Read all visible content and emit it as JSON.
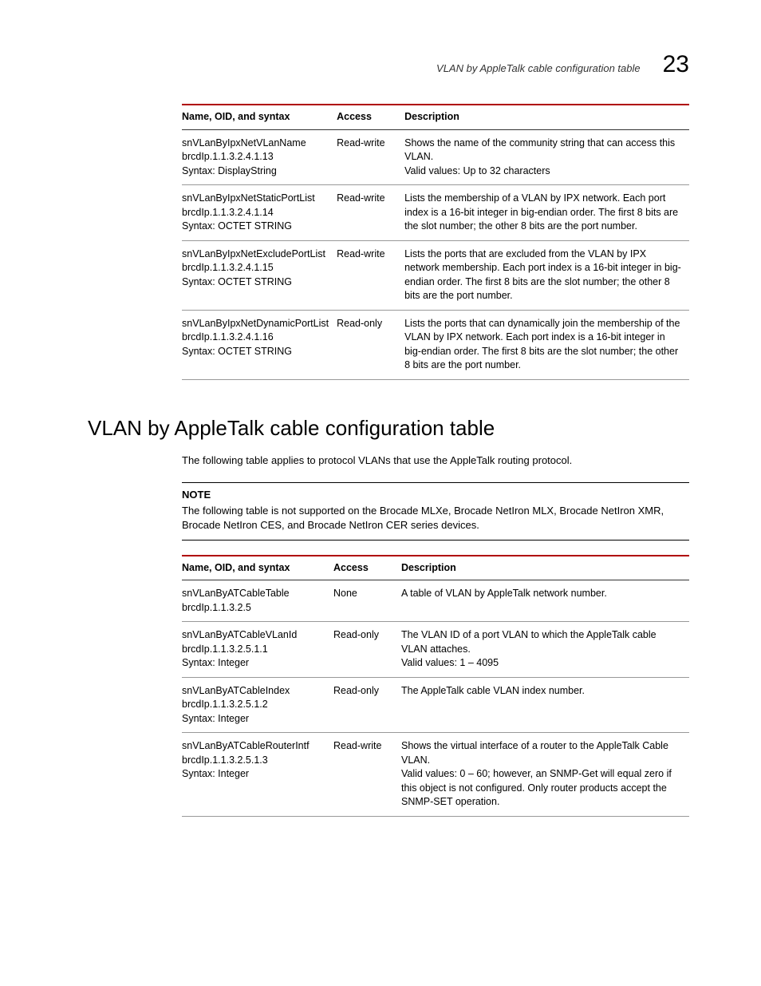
{
  "header": {
    "title": "VLAN by AppleTalk cable configuration table",
    "chapter_number": "23"
  },
  "table1": {
    "columns": [
      "Name, OID, and syntax",
      "Access",
      "Description"
    ],
    "rows": [
      {
        "name1": "snVLanByIpxNetVLanName",
        "name2": "brcdIp.1.1.3.2.4.1.13",
        "name3": "Syntax: DisplayString",
        "access": "Read-write",
        "desc": "Shows the name of the community string that can access this VLAN.\nValid values: Up to 32 characters"
      },
      {
        "name1": "snVLanByIpxNetStaticPortList",
        "name2": "brcdIp.1.1.3.2.4.1.14",
        "name3": "Syntax: OCTET STRING",
        "access": "Read-write",
        "desc": "Lists the membership of a VLAN by IPX network. Each port index is a 16-bit integer in big-endian order. The first 8 bits are the slot number; the other 8 bits are the port number."
      },
      {
        "name1": "snVLanByIpxNetExcludePortList",
        "name2": "brcdIp.1.1.3.2.4.1.15",
        "name3": "Syntax: OCTET STRING",
        "access": "Read-write",
        "desc": "Lists the ports that are excluded from the VLAN by IPX network membership. Each port index is a 16-bit integer in big-endian order. The first 8 bits are the slot number; the other 8 bits are the port number."
      },
      {
        "name1": "snVLanByIpxNetDynamicPortList",
        "name2": "brcdIp.1.1.3.2.4.1.16",
        "name3": "Syntax: OCTET STRING",
        "access": "Read-only",
        "desc": "Lists the ports that can dynamically join the membership of the VLAN by IPX network. Each port index is a 16-bit integer in big-endian order. The first 8 bits are the slot number; the other 8 bits are the port number."
      }
    ]
  },
  "section_heading": "VLAN by AppleTalk cable configuration table",
  "intro": "The following table applies to protocol VLANs that use the AppleTalk routing protocol.",
  "note": {
    "heading": "NOTE",
    "body": "The following table is not supported on the Brocade MLXe, Brocade NetIron MLX, Brocade NetIron XMR, Brocade NetIron CES, and Brocade NetIron CER series devices."
  },
  "table2": {
    "columns": [
      "Name, OID, and syntax",
      "Access",
      "Description"
    ],
    "rows": [
      {
        "name1": "snVLanByATCableTable",
        "name2": "brcdIp.1.1.3.2.5",
        "name3": "",
        "access": "None",
        "desc": "A table of VLAN by AppleTalk network number."
      },
      {
        "name1": "snVLanByATCableVLanId",
        "name2": "brcdIp.1.1.3.2.5.1.1",
        "name3": "Syntax: Integer",
        "access": "Read-only",
        "desc": "The VLAN ID of a port VLAN to which the AppleTalk cable VLAN attaches.\nValid values: 1 – 4095"
      },
      {
        "name1": "snVLanByATCableIndex",
        "name2": "brcdIp.1.1.3.2.5.1.2",
        "name3": "Syntax: Integer",
        "access": "Read-only",
        "desc": "The AppleTalk cable VLAN index number."
      },
      {
        "name1": "snVLanByATCableRouterIntf",
        "name2": "brcdIp.1.1.3.2.5.1.3",
        "name3": "Syntax: Integer",
        "access": "Read-write",
        "desc": "Shows the virtual interface of a router to the AppleTalk Cable VLAN.\nValid values: 0 – 60; however, an SNMP-Get will equal zero if this object is not configured. Only router products accept the SNMP-SET operation."
      }
    ]
  }
}
